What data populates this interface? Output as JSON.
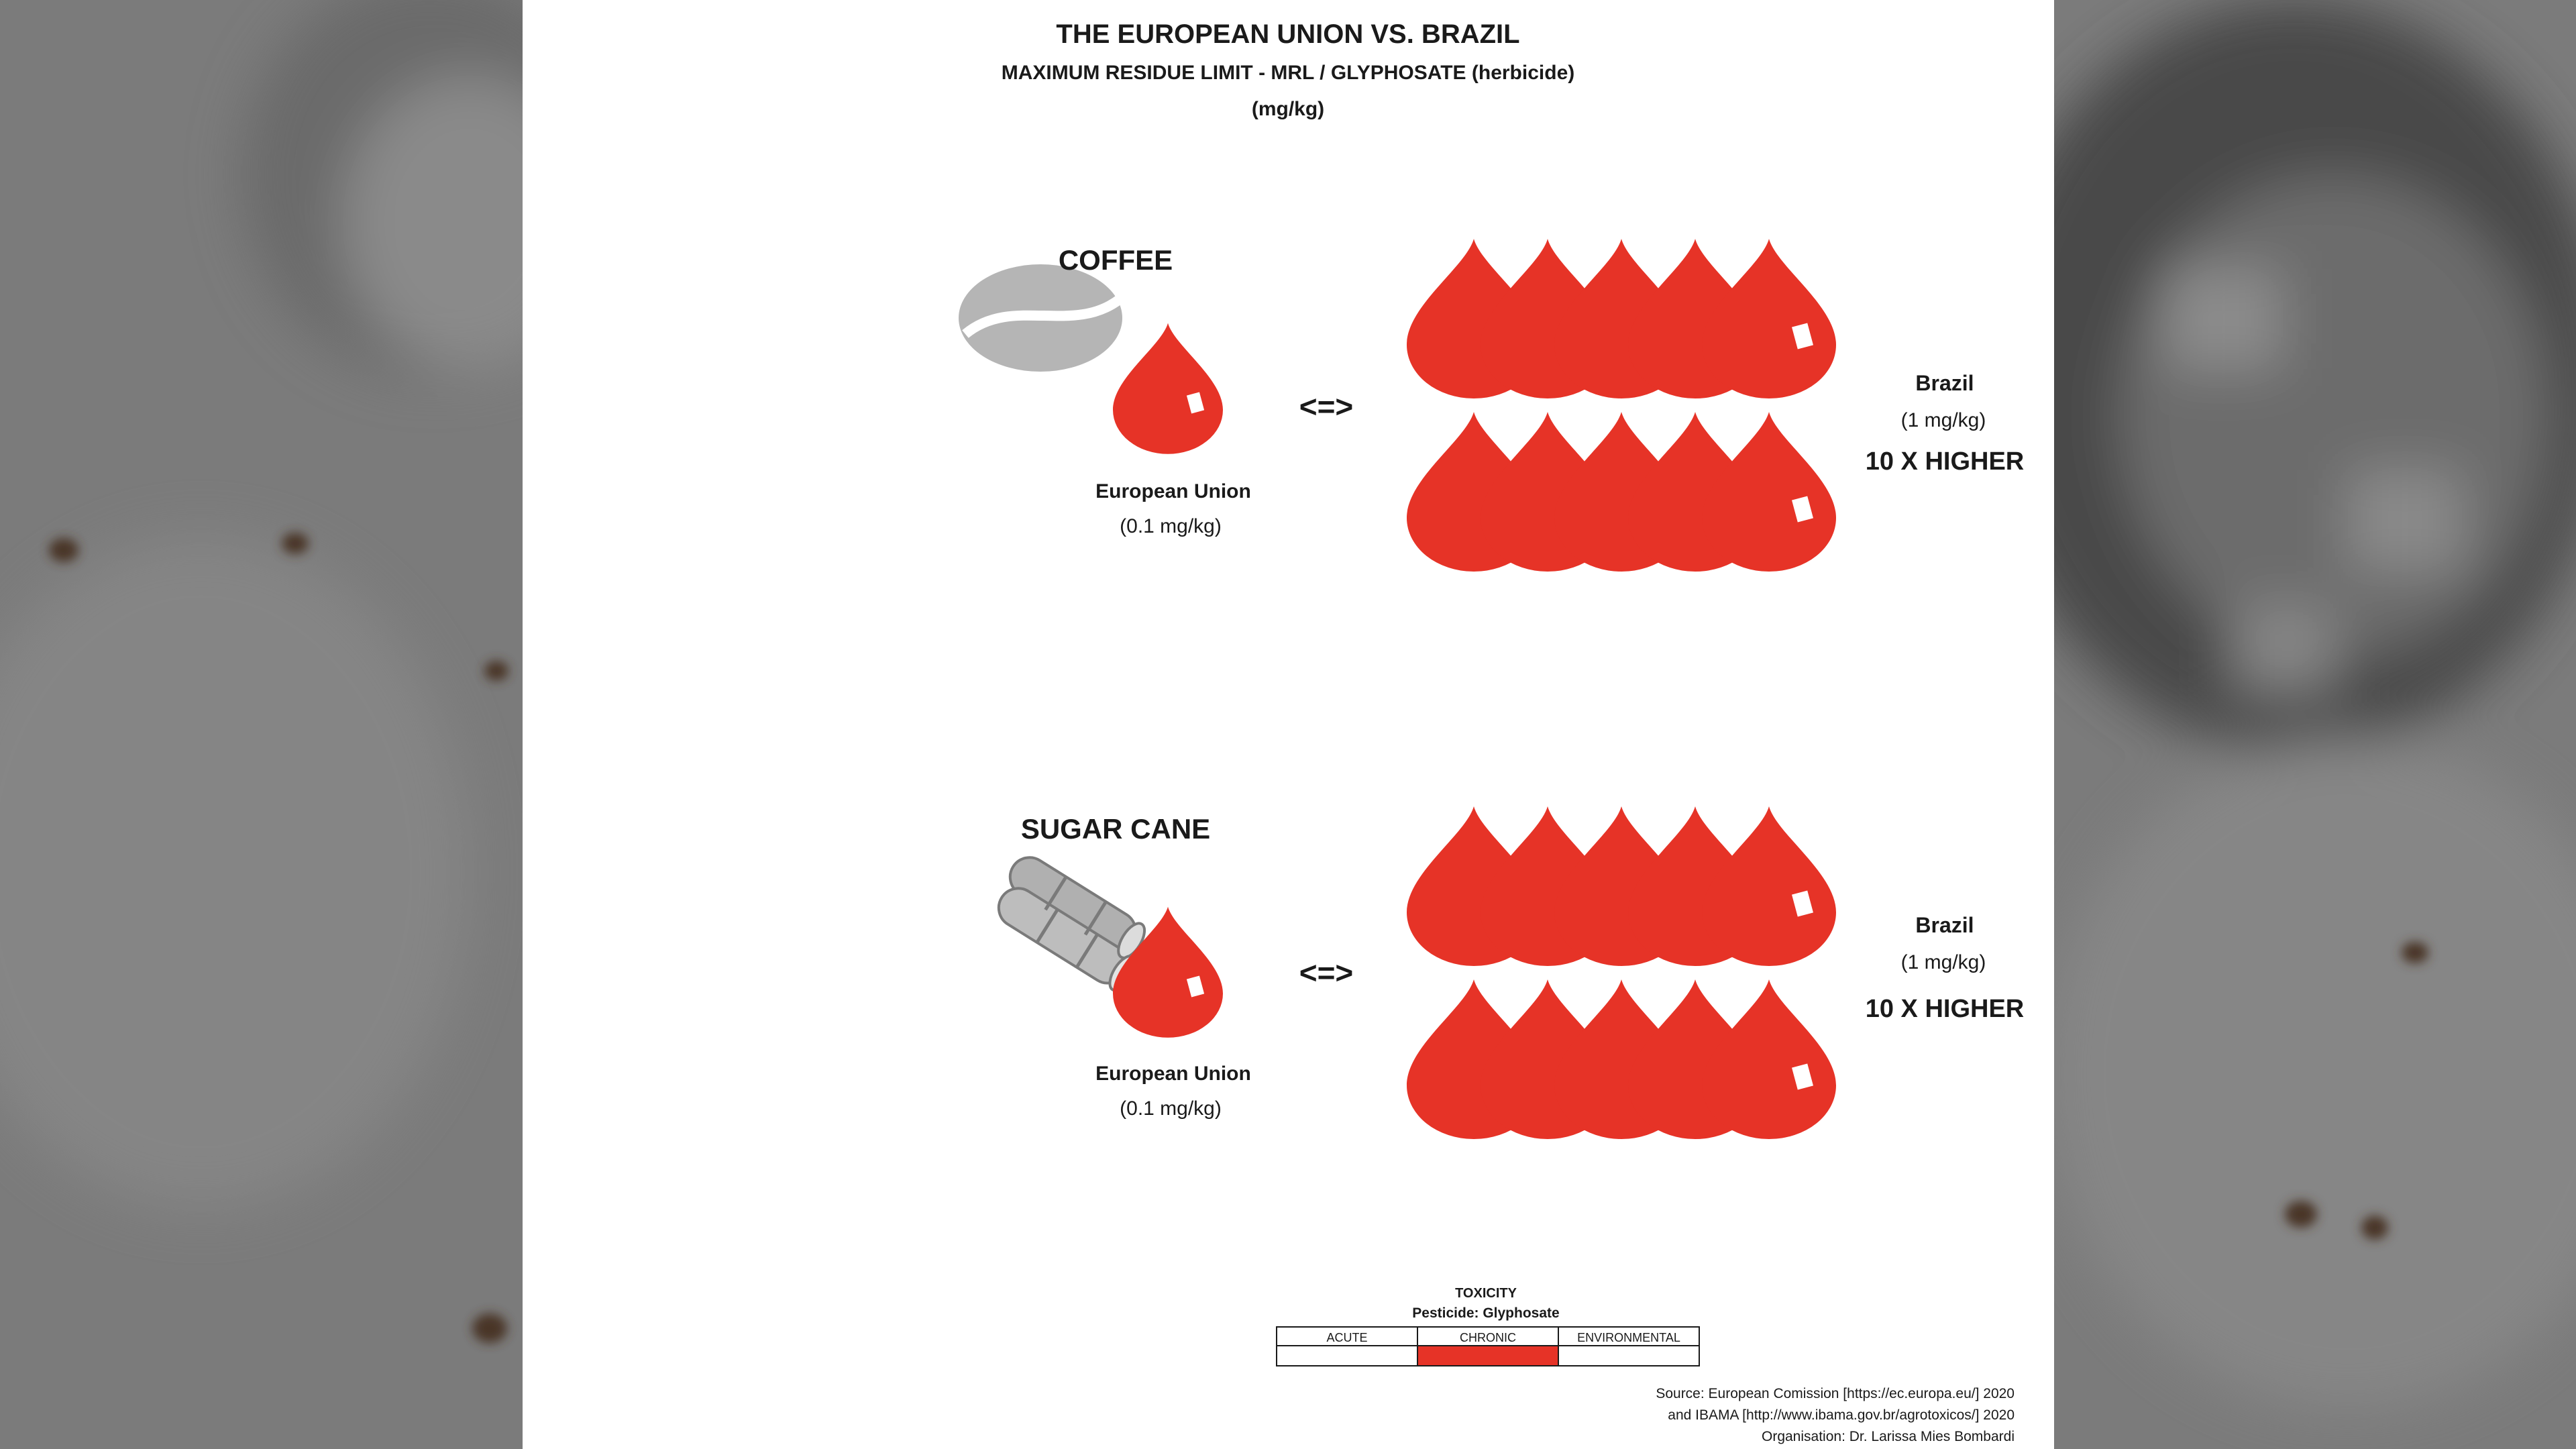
{
  "header": {
    "title": "THE EUROPEAN UNION VS. BRAZIL",
    "subtitle": "MAXIMUM RESIDUE LIMIT - MRL / GLYPHOSATE (herbicide)",
    "unit": "(mg/kg)"
  },
  "crops": [
    {
      "name": "COFFEE",
      "icon": "coffee-bean-icon",
      "eu_label": "European Union",
      "eu_value": "(0.1 mg/kg)",
      "eu_limit_mg_per_kg": 0.1,
      "comparator": "<=>",
      "brazil_label": "Brazil",
      "brazil_value": "(1 mg/kg)",
      "brazil_limit_mg_per_kg": 1,
      "ratio_label": "10 X HIGHER",
      "brazil_drop_count": 10
    },
    {
      "name": "SUGAR CANE",
      "icon": "sugar-cane-icon",
      "eu_label": "European Union",
      "eu_value": "(0.1 mg/kg)",
      "eu_limit_mg_per_kg": 0.1,
      "comparator": "<=>",
      "brazil_label": "Brazil",
      "brazil_value": "(1 mg/kg)",
      "brazil_limit_mg_per_kg": 1,
      "ratio_label": "10 X HIGHER",
      "brazil_drop_count": 10
    }
  ],
  "toxicity": {
    "title": "TOXICITY",
    "pesticide": "Pesticide: Glyphosate",
    "columns": [
      "ACUTE",
      "CHRONIC",
      "ENVIRONMENTAL"
    ],
    "highlighted": "CHRONIC"
  },
  "source": {
    "line1": "Source: European Comission [https://ec.europa.eu/] 2020",
    "line2": "and IBAMA [http://www.ibama.gov.br/agrotoxicos/] 2020",
    "line3": "Organisation: Dr. Larissa Mies Bombardi"
  },
  "colors": {
    "drop_red": "#e63327",
    "icon_gray": "#b7b7b7",
    "text": "#1a1a1a"
  }
}
